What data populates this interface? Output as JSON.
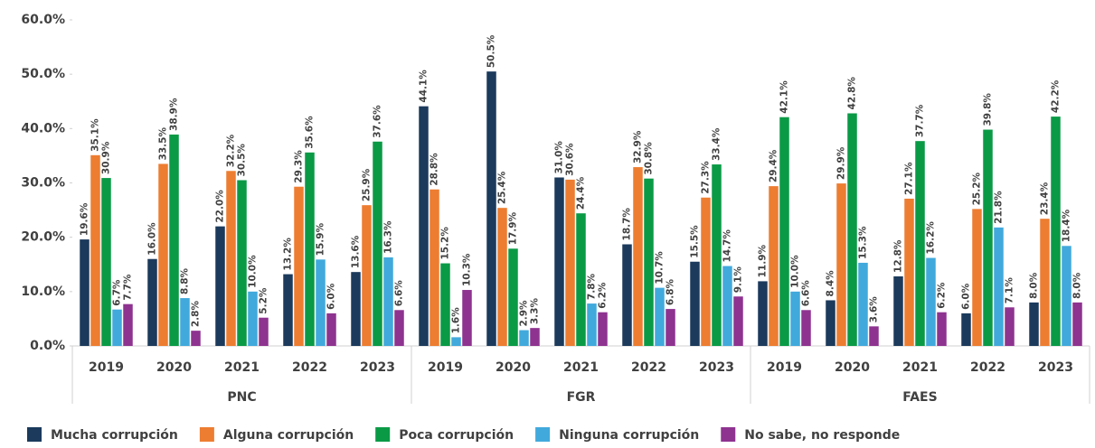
{
  "chart_data": {
    "type": "bar",
    "categories": [
      "2019",
      "2020",
      "2021",
      "2022",
      "2023",
      "2019",
      "2020",
      "2021",
      "2022",
      "2023",
      "2019",
      "2020",
      "2021",
      "2022",
      "2023"
    ],
    "category_groups": [
      "PNC",
      "FGR",
      "FAES"
    ],
    "ylim": [
      0,
      60
    ],
    "yticks": [
      {
        "value": 0,
        "label": "0.0%"
      },
      {
        "value": 10,
        "label": "10.0%"
      },
      {
        "value": 20,
        "label": "20.0%"
      },
      {
        "value": 30,
        "label": "30.0%"
      },
      {
        "value": 40,
        "label": "40.0%"
      },
      {
        "value": 50,
        "label": "50.0%"
      },
      {
        "value": 60,
        "label": "60.0%"
      }
    ],
    "legend": "bottom",
    "series": [
      {
        "name": "Mucha corrupción",
        "color": "#1b3a5c",
        "values": [
          19.6,
          16.0,
          22.0,
          13.2,
          13.6,
          44.1,
          50.5,
          31.0,
          18.7,
          15.5,
          11.9,
          8.4,
          12.8,
          6.0,
          8.0
        ],
        "value_labels": [
          "19.6%",
          "16.0%",
          "22.0%",
          "13.2%",
          "13.6%",
          "44.1%",
          "50.5%",
          "31.0%",
          "18.7%",
          "15.5%",
          "11.9%",
          "8.4%",
          "12.8%",
          "6.0%",
          "8.0%"
        ]
      },
      {
        "name": "Alguna corrupción",
        "color": "#ed7d31",
        "values": [
          35.1,
          33.5,
          32.2,
          29.3,
          25.9,
          28.8,
          25.4,
          30.6,
          32.9,
          27.3,
          29.4,
          29.9,
          27.1,
          25.2,
          23.4
        ],
        "value_labels": [
          "35.1%",
          "33.5%",
          "32.2%",
          "29.3%",
          "25.9%",
          "28.8%",
          "25.4%",
          "30.6%",
          "32.9%",
          "27.3%",
          "29.4%",
          "29.9%",
          "27.1%",
          "25.2%",
          "23.4%"
        ]
      },
      {
        "name": "Poca corrupción",
        "color": "#0a9a46",
        "values": [
          30.9,
          38.9,
          30.5,
          35.6,
          37.6,
          15.2,
          17.9,
          24.4,
          30.8,
          33.4,
          42.1,
          42.8,
          37.7,
          39.8,
          42.2
        ],
        "value_labels": [
          "30.9%",
          "38.9%",
          "30.5%",
          "35.6%",
          "37.6%",
          "15.2%",
          "17.9%",
          "24.4%",
          "30.8%",
          "33.4%",
          "42.1%",
          "42.8%",
          "37.7%",
          "39.8%",
          "42.2%"
        ]
      },
      {
        "name": "Ninguna corrupción",
        "color": "#41a9dc",
        "values": [
          6.7,
          8.8,
          10.0,
          15.9,
          16.3,
          1.6,
          2.9,
          7.8,
          10.7,
          14.7,
          10.0,
          15.3,
          16.2,
          21.8,
          18.4
        ],
        "value_labels": [
          "6.7%",
          "8.8%",
          "10.0%",
          "15.9%",
          "16.3%",
          "1.6%",
          "2.9%",
          "7.8%",
          "10.7%",
          "14.7%",
          "10.0%",
          "15.3%",
          "16.2%",
          "21.8%",
          "18.4%"
        ]
      },
      {
        "name": "No sabe, no responde",
        "color": "#8e3390",
        "values": [
          7.7,
          2.8,
          5.2,
          6.0,
          6.6,
          10.3,
          3.3,
          6.2,
          6.8,
          9.1,
          6.6,
          3.6,
          6.2,
          7.1,
          8.0
        ],
        "value_labels": [
          "7.7%",
          "2.8%",
          "5.2%",
          "6.0%",
          "6.6%",
          "10.3%",
          "3.3%",
          "6.2%",
          "6.8%",
          "9.1%",
          "6.6%",
          "3.6%",
          "6.2%",
          "7.1%",
          "8.0%"
        ]
      }
    ]
  }
}
